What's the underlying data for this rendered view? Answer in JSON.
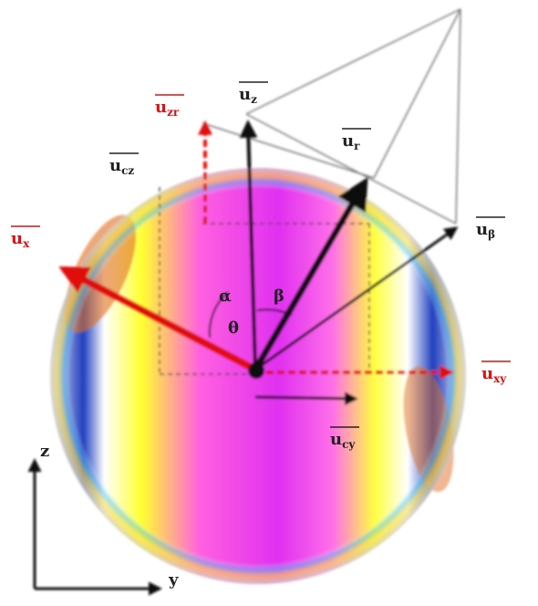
{
  "vectors": [
    {
      "symbol": "u",
      "subscript": "z"
    },
    {
      "symbol": "u",
      "subscript": "zr"
    },
    {
      "symbol": "u",
      "subscript": "cz"
    },
    {
      "symbol": "u",
      "subscript": "x"
    },
    {
      "symbol": "u",
      "subscript": "r"
    },
    {
      "symbol": "u",
      "subscript": "β"
    },
    {
      "symbol": "u",
      "subscript": "xy"
    },
    {
      "symbol": "u",
      "subscript": "cy"
    }
  ],
  "axes": {
    "vertical": "z",
    "horizontal": "y"
  },
  "angles": [
    "α",
    "β",
    "θ"
  ]
}
